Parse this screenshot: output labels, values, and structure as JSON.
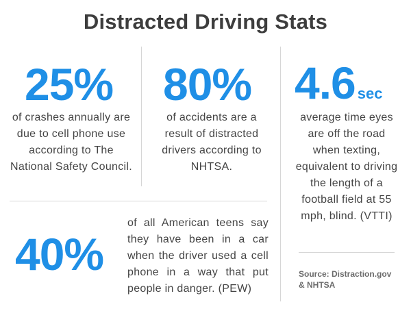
{
  "title": "Distracted Driving Stats",
  "stats": [
    {
      "value": "25%",
      "unit": "",
      "description": "of crashes annually are due to cell phone use according to The National Safety Council."
    },
    {
      "value": "80%",
      "unit": "",
      "description": "of accidents are a result of distracted drivers according to NHTSA."
    },
    {
      "value": "4.6",
      "unit": "sec",
      "description": "average time eyes are off the road when texting, equivalent to driving the length of a football field at 55 mph, blind. (VTTI)"
    },
    {
      "value": "40%",
      "unit": "",
      "description": "of all American teens say they have been in a car when the driver used a cell phone in a way that put people in danger. (PEW)"
    }
  ],
  "source": "Source: Distraction.gov & NHTSA",
  "colors": {
    "accent": "#1f8fe6",
    "title": "#3d3d3d",
    "text": "#444444",
    "divider": "#d6d6d6"
  }
}
